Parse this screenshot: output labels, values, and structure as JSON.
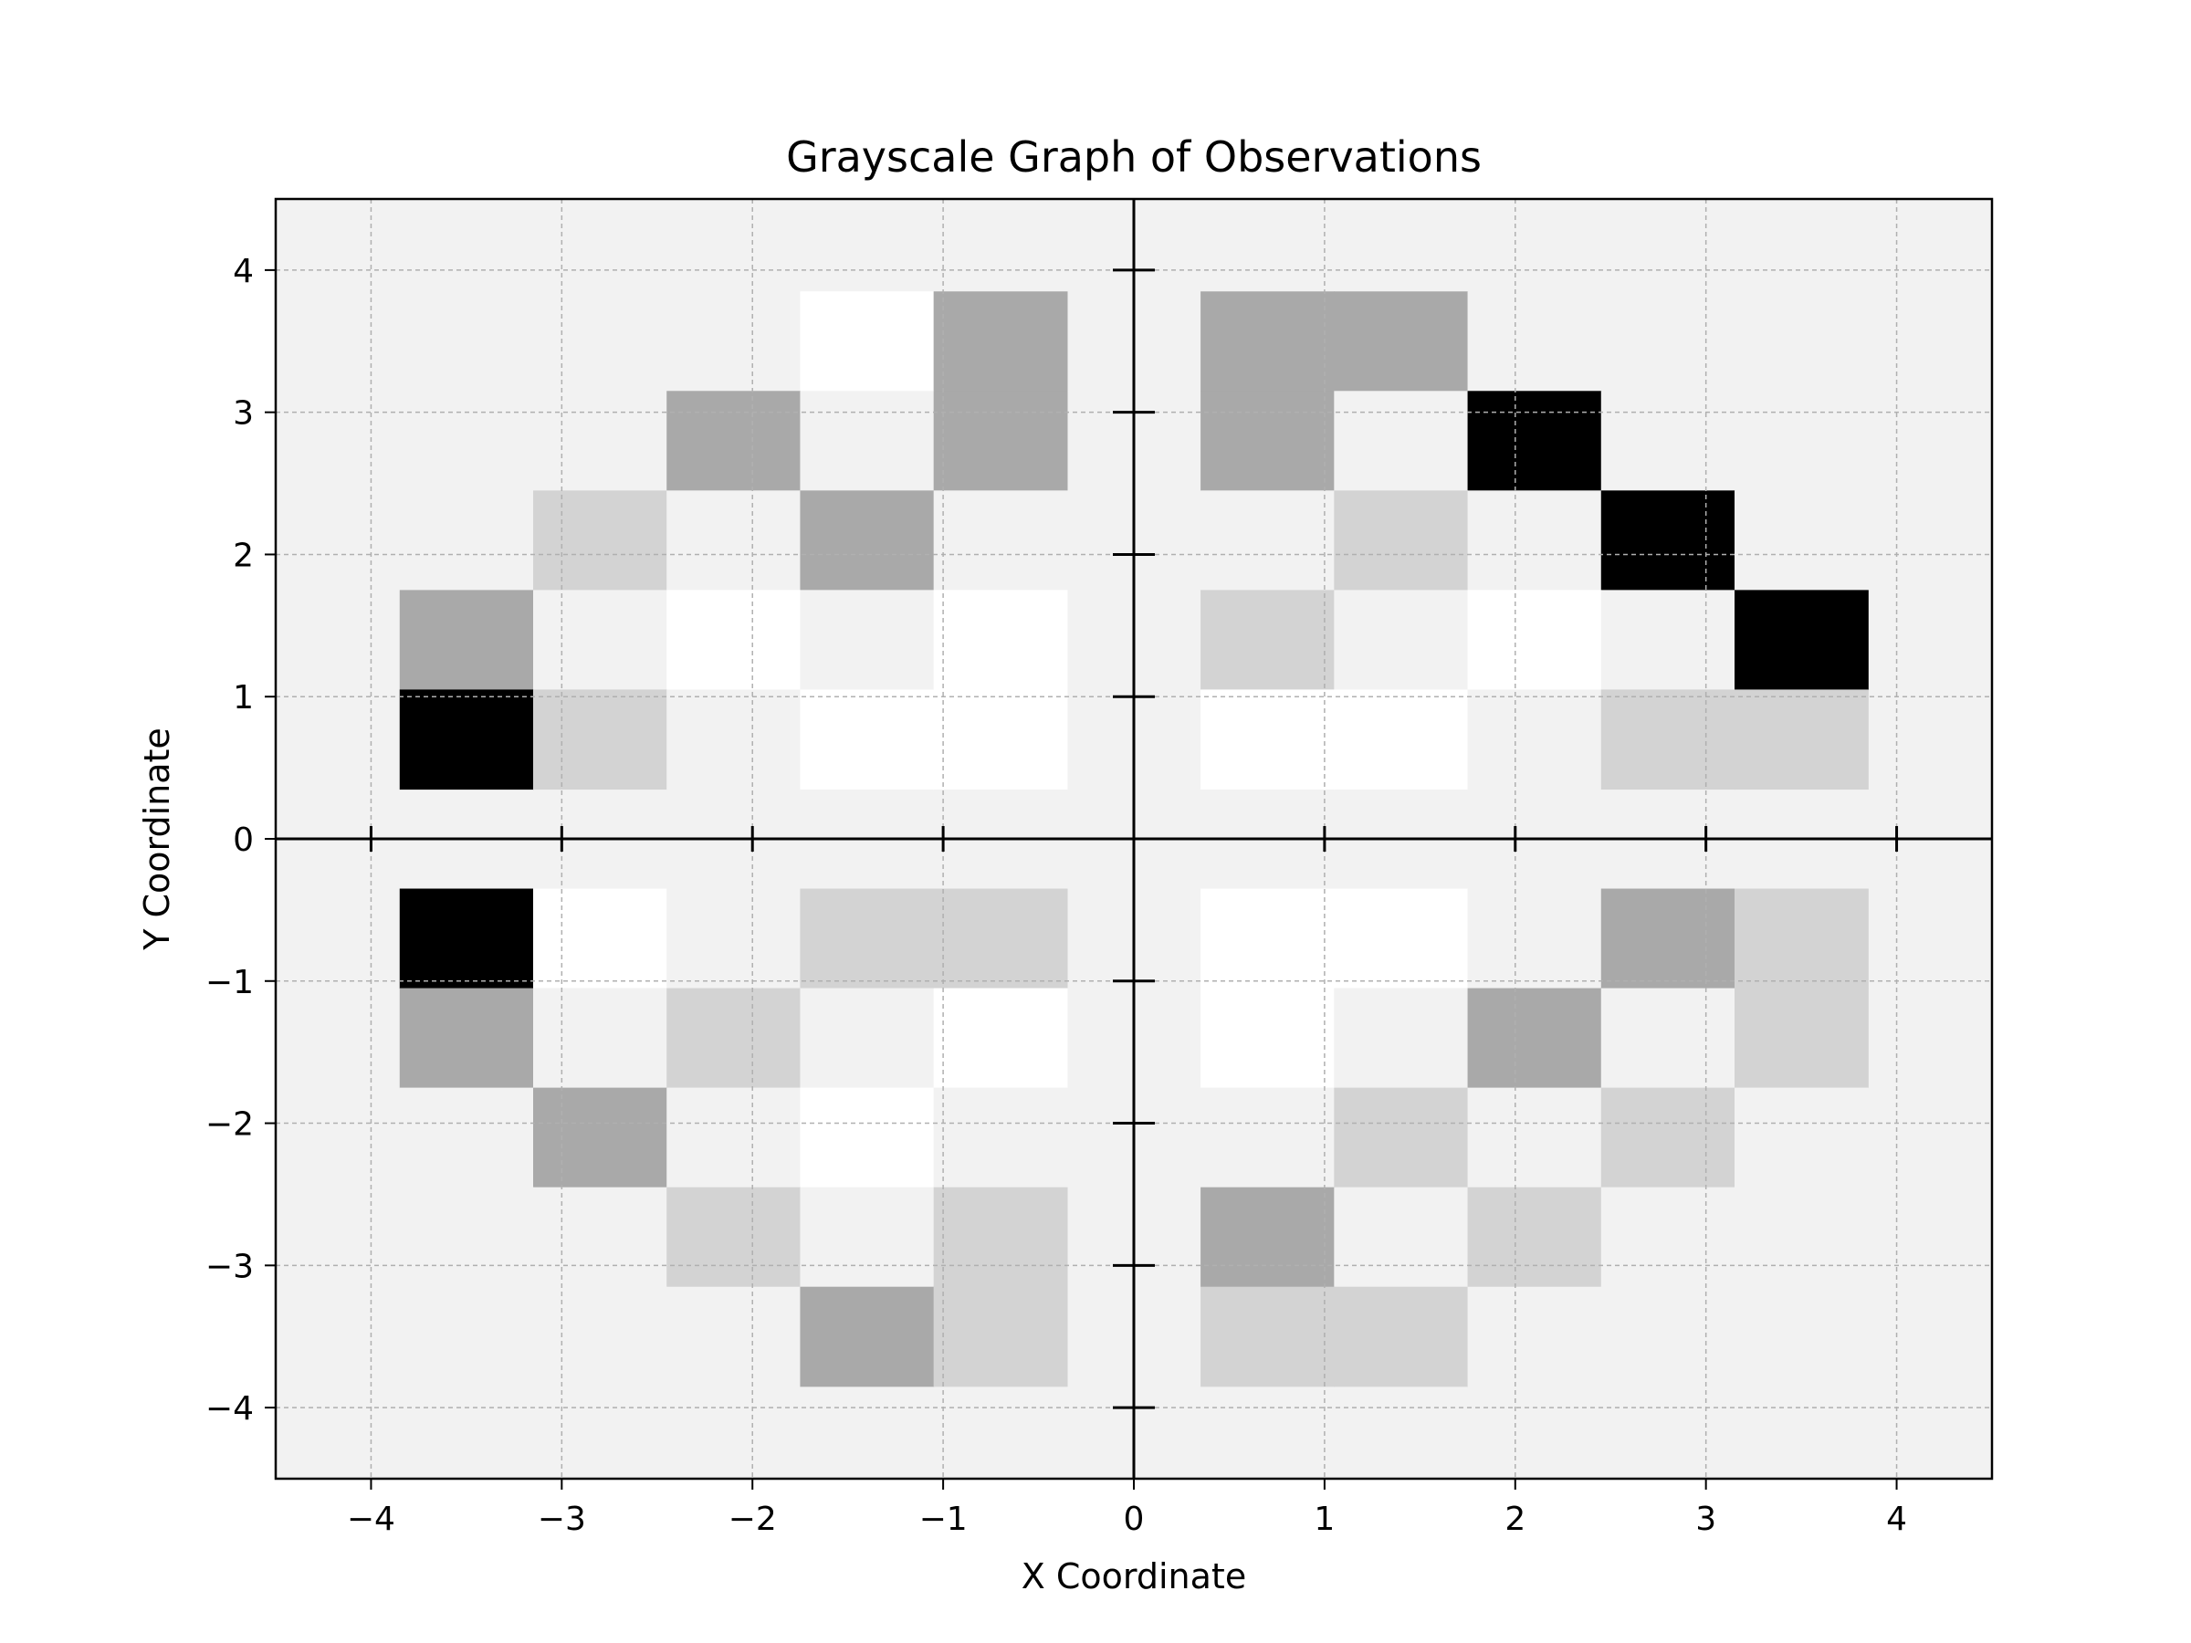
{
  "chart_data": {
    "type": "heatmap",
    "title": "Grayscale Graph of Observations",
    "xlabel": "X Coordinate",
    "ylabel": "Y Coordinate",
    "xlim": [
      -4.5,
      4.5
    ],
    "ylim": [
      -4.5,
      4.5
    ],
    "xticks": [
      -4,
      -3,
      -2,
      -1,
      0,
      1,
      2,
      3,
      4
    ],
    "yticks": [
      -4,
      -3,
      -2,
      -1,
      0,
      1,
      2,
      3,
      4
    ],
    "xtick_labels": [
      "−4",
      "−3",
      "−2",
      "−1",
      "0",
      "1",
      "2",
      "3",
      "4"
    ],
    "ytick_labels": [
      "−4",
      "−3",
      "−2",
      "−1",
      "0",
      "1",
      "2",
      "3",
      "4"
    ],
    "grid": true,
    "colors": {
      "background": "#f2f2f2",
      "levels": {
        "0": "#ffffff",
        "1": "#f2f2f2",
        "2": "#d3d3d3",
        "3": "#a9a9a9",
        "4": "#000000"
      }
    },
    "cell_width": 0.7,
    "cell_height": 0.7,
    "quadrants": [
      {
        "name": "top-left",
        "x_centers": [
          -3.5,
          -2.8,
          -2.1,
          -1.4,
          -0.7
        ],
        "y_centers": [
          3.5,
          2.8,
          2.1,
          1.4,
          0.7
        ],
        "values": [
          [
            1,
            1,
            1,
            0,
            3
          ],
          [
            1,
            1,
            3,
            1,
            3
          ],
          [
            1,
            2,
            1,
            3,
            1
          ],
          [
            3,
            1,
            0,
            1,
            0
          ],
          [
            4,
            2,
            1,
            0,
            0
          ]
        ]
      },
      {
        "name": "top-right",
        "x_centers": [
          0.7,
          1.4,
          2.1,
          2.8,
          3.5
        ],
        "y_centers": [
          3.5,
          2.8,
          2.1,
          1.4,
          0.7
        ],
        "values": [
          [
            3,
            3,
            1,
            1,
            1
          ],
          [
            3,
            1,
            4,
            1,
            1
          ],
          [
            1,
            2,
            1,
            4,
            1
          ],
          [
            2,
            1,
            0,
            1,
            4
          ],
          [
            0,
            0,
            1,
            2,
            2
          ]
        ]
      },
      {
        "name": "bottom-left",
        "x_centers": [
          -3.5,
          -2.8,
          -2.1,
          -1.4,
          -0.7
        ],
        "y_centers": [
          -0.7,
          -1.4,
          -2.1,
          -2.8,
          -3.5
        ],
        "values": [
          [
            4,
            0,
            1,
            2,
            2
          ],
          [
            3,
            1,
            2,
            1,
            0
          ],
          [
            1,
            3,
            1,
            0,
            1
          ],
          [
            1,
            1,
            2,
            1,
            2
          ],
          [
            1,
            1,
            1,
            3,
            2
          ]
        ]
      },
      {
        "name": "bottom-right",
        "x_centers": [
          0.7,
          1.4,
          2.1,
          2.8,
          3.5
        ],
        "y_centers": [
          -0.7,
          -1.4,
          -2.1,
          -2.8,
          -3.5
        ],
        "values": [
          [
            0,
            0,
            1,
            3,
            2
          ],
          [
            0,
            1,
            3,
            1,
            2
          ],
          [
            1,
            2,
            1,
            2,
            1
          ],
          [
            3,
            1,
            2,
            1,
            1
          ],
          [
            2,
            2,
            1,
            1,
            1
          ]
        ]
      }
    ]
  }
}
